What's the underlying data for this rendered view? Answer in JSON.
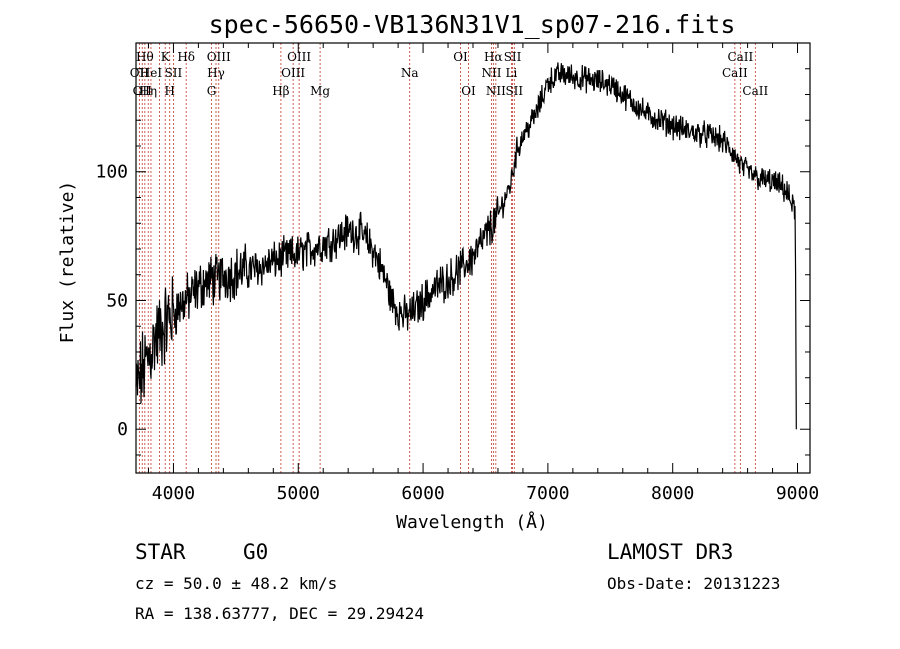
{
  "chart_data": {
    "type": "line",
    "title": "spec-56650-VB136N31V1_sp07-216.fits",
    "xlabel": "Wavelength (Å)",
    "ylabel": "Flux (relative)",
    "xlim": [
      3700,
      9100
    ],
    "ylim": [
      -17,
      150
    ],
    "xticks": [
      4000,
      5000,
      6000,
      7000,
      8000,
      9000
    ],
    "xtick_labels": [
      "4000",
      "5000",
      "6000",
      "7000",
      "8000",
      "9000"
    ],
    "yticks": [
      0,
      50,
      100
    ],
    "ytick_labels": [
      "0",
      "50",
      "100"
    ],
    "series": [
      {
        "name": "flux",
        "x": [
          3700,
          3750,
          3800,
          3850,
          3900,
          3950,
          4000,
          4050,
          4100,
          4150,
          4200,
          4250,
          4300,
          4350,
          4400,
          4450,
          4500,
          4600,
          4700,
          4800,
          4900,
          5000,
          5100,
          5200,
          5300,
          5400,
          5500,
          5600,
          5700,
          5750,
          5800,
          5850,
          5900,
          5950,
          6000,
          6100,
          6200,
          6300,
          6400,
          6500,
          6600,
          6700,
          6750,
          6800,
          6850,
          6900,
          6950,
          7000,
          7100,
          7200,
          7300,
          7400,
          7500,
          7600,
          7700,
          7800,
          7900,
          8000,
          8100,
          8200,
          8300,
          8400,
          8500,
          8550,
          8600,
          8700,
          8800,
          8900,
          8950,
          8980,
          9000
        ],
        "y": [
          15,
          22,
          28,
          35,
          38,
          42,
          45,
          48,
          50,
          52,
          55,
          57,
          58,
          58,
          60,
          60,
          61,
          62,
          63,
          65,
          67,
          68,
          70,
          72,
          74,
          77,
          76,
          70,
          58,
          50,
          46,
          44,
          45,
          47,
          50,
          55,
          58,
          62,
          67,
          75,
          83,
          95,
          108,
          114,
          118,
          122,
          128,
          135,
          138,
          137,
          136,
          135,
          134,
          130,
          126,
          122,
          120,
          118,
          116,
          115,
          114,
          112,
          106,
          102,
          100,
          97,
          96,
          93,
          88,
          85,
          0
        ]
      }
    ],
    "spectral_lines": [
      {
        "wl": 3727,
        "label": "OII",
        "row": 2
      },
      {
        "wl": 3750,
        "label": "OII",
        "row": 3
      },
      {
        "wl": 3771,
        "label": "Hθ",
        "row": 1
      },
      {
        "wl": 3798,
        "label": "Hη",
        "row": 3
      },
      {
        "wl": 3820,
        "label": "HeI",
        "row": 2
      },
      {
        "wl": 3889,
        "label": "",
        "row": 0
      },
      {
        "wl": 3934,
        "label": "K",
        "row": 1
      },
      {
        "wl": 3970,
        "label": "H",
        "row": 3
      },
      {
        "wl": 4000,
        "label": "SII",
        "row": 2
      },
      {
        "wl": 4102,
        "label": "Hδ",
        "row": 1
      },
      {
        "wl": 4305,
        "label": "G",
        "row": 3
      },
      {
        "wl": 4341,
        "label": "Hγ",
        "row": 2
      },
      {
        "wl": 4363,
        "label": "OIII",
        "row": 1
      },
      {
        "wl": 4861,
        "label": "Hβ",
        "row": 3
      },
      {
        "wl": 4959,
        "label": "OIII",
        "row": 2
      },
      {
        "wl": 5007,
        "label": "OIII",
        "row": 1
      },
      {
        "wl": 5175,
        "label": "Mg",
        "row": 3
      },
      {
        "wl": 5893,
        "label": "Na",
        "row": 2
      },
      {
        "wl": 6300,
        "label": "OI",
        "row": 1
      },
      {
        "wl": 6364,
        "label": "OI",
        "row": 3
      },
      {
        "wl": 6548,
        "label": "NII",
        "row": 2
      },
      {
        "wl": 6563,
        "label": "Hα",
        "row": 1
      },
      {
        "wl": 6583,
        "label": "NII",
        "row": 3
      },
      {
        "wl": 6708,
        "label": "Li",
        "row": 2
      },
      {
        "wl": 6717,
        "label": "SII",
        "row": 1
      },
      {
        "wl": 6731,
        "label": "SII",
        "row": 3
      },
      {
        "wl": 8498,
        "label": "CaII",
        "row": 2
      },
      {
        "wl": 8542,
        "label": "CaII",
        "row": 1
      },
      {
        "wl": 8662,
        "label": "CaII",
        "row": 3
      }
    ]
  },
  "info": {
    "class_label": "STAR",
    "subclass": "G0",
    "survey": "LAMOST DR3",
    "redshift_text": "cz = 50.0 ± 48.2 km/s",
    "obs_date": "Obs-Date: 20131223",
    "coords": "RA = 138.63777, DEC =  29.29424"
  },
  "colors": {
    "line_marker": "#c0392b",
    "spectrum": "#000000"
  }
}
